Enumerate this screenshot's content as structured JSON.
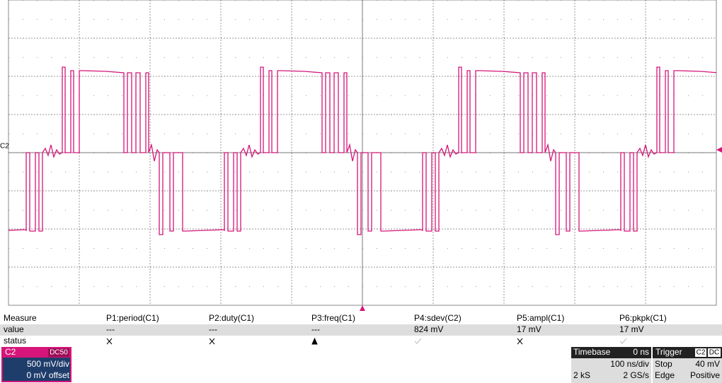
{
  "channel_marker": "C2",
  "measure": {
    "label": "Measure",
    "row_labels": [
      "value",
      "status"
    ],
    "columns": [
      {
        "name": "P1:period(C1)",
        "value": "---"
      },
      {
        "name": "P2:duty(C1)",
        "value": "---"
      },
      {
        "name": "P3:freq(C1)",
        "value": "---"
      },
      {
        "name": "P4:sdev(C2)",
        "value": "824 mV"
      },
      {
        "name": "P5:ampl(C1)",
        "value": "17 mV"
      },
      {
        "name": "P6:pkpk(C1)",
        "value": "17 mV"
      }
    ]
  },
  "channel": {
    "name": "C2",
    "coupling": "DC50",
    "scale": "500 mV/div",
    "offset": "0 mV offset"
  },
  "timebase": {
    "label": "Timebase",
    "delay": "0 ns",
    "scale": "100 ns/div",
    "samples": "2 kS",
    "rate": "2 GS/s"
  },
  "trigger": {
    "label": "Trigger",
    "source": "C2",
    "coupling": "DC",
    "mode": "Stop",
    "level": "40 mV",
    "type": "Edge",
    "slope": "Positive"
  }
}
